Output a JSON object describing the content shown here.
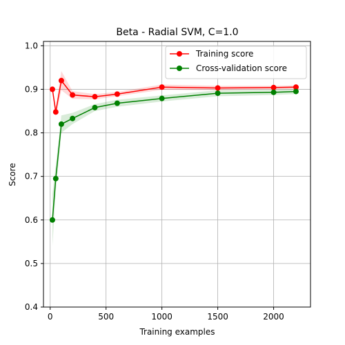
{
  "chart_data": {
    "type": "line",
    "title": "Beta - Radial SVM, C=1.0",
    "xlabel": "Training examples",
    "ylabel": "Score",
    "xlim": [
      -60,
      2330
    ],
    "ylim": [
      0.4,
      1.01
    ],
    "xticks": [
      0,
      500,
      1000,
      1500,
      2000
    ],
    "yticks": [
      0.4,
      0.5,
      0.6,
      0.7,
      0.8,
      0.9,
      1.0
    ],
    "grid": true,
    "legend_position": "top-right",
    "x": [
      20,
      50,
      100,
      200,
      400,
      600,
      1000,
      1500,
      2000,
      2200
    ],
    "series": [
      {
        "name": "Training score",
        "color": "#ff0000",
        "values": [
          0.9,
          0.848,
          0.92,
          0.887,
          0.883,
          0.889,
          0.905,
          0.903,
          0.904,
          0.905
        ],
        "band_lower": [
          0.895,
          0.838,
          0.898,
          0.878,
          0.877,
          0.884,
          0.899,
          0.898,
          0.9,
          0.901
        ],
        "band_upper": [
          0.905,
          0.858,
          0.942,
          0.896,
          0.889,
          0.894,
          0.911,
          0.908,
          0.908,
          0.909
        ]
      },
      {
        "name": "Cross-validation score",
        "color": "#008000",
        "values": [
          0.6,
          0.695,
          0.82,
          0.833,
          0.858,
          0.868,
          0.879,
          0.891,
          0.893,
          0.895
        ],
        "band_lower": [
          0.54,
          0.665,
          0.8,
          0.82,
          0.85,
          0.86,
          0.872,
          0.884,
          0.887,
          0.889
        ],
        "band_upper": [
          0.66,
          0.725,
          0.84,
          0.846,
          0.866,
          0.876,
          0.886,
          0.898,
          0.899,
          0.901
        ]
      }
    ]
  }
}
